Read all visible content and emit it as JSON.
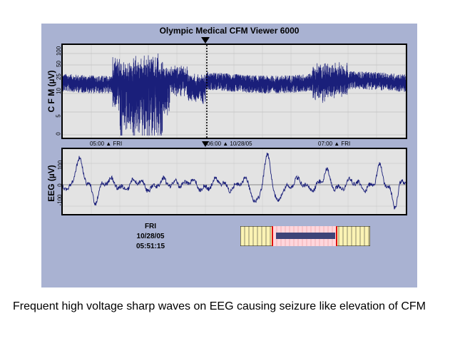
{
  "window": {
    "title": "Olympic Medical CFM Viewer 6000"
  },
  "cfm_panel": {
    "ylabel": "C F M (µV)",
    "yticks": [
      "0",
      "5",
      "10",
      "25",
      "50",
      "100"
    ],
    "time_ticks": [
      "05:00 ▲ FRI",
      "06:00 ▲ 10/28/05",
      "07:00 ▲ FRI"
    ]
  },
  "eeg_panel": {
    "ylabel": "EEG (µV)",
    "yticks": [
      "-100",
      "0",
      "100"
    ]
  },
  "cursor_time": {
    "day": "FRI",
    "date": "10/28/05",
    "time": "05:51:15"
  },
  "caption": "Frequent high voltage sharp waves on EEG causing seizure like elevation of CFM",
  "colors": {
    "viewer_bg": "#a9b2d2",
    "panel_bg": "#e3e3e3",
    "trace": "#1a1f7a",
    "scrollbar_bg": "#fbf3b4",
    "scrollbar_window": "#ffd6dc",
    "scrollbar_edge": "#e01010",
    "scrollbar_thumb": "#3e4478"
  }
}
